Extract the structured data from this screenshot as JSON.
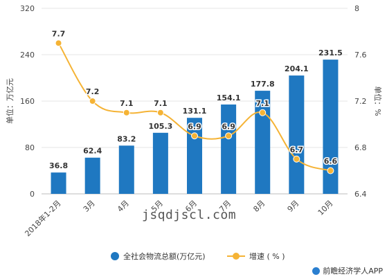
{
  "chart_data": {
    "type": "bar",
    "categories": [
      "2018年1-2月",
      "3月",
      "4月",
      "5月",
      "6月",
      "7月",
      "8月",
      "9月",
      "10月"
    ],
    "series": [
      {
        "name": "全社会物流总额(万亿元)",
        "type": "bar",
        "axis": "left",
        "values": [
          36.8,
          62.4,
          83.2,
          105.3,
          131.1,
          154.1,
          177.8,
          204.1,
          231.5
        ]
      },
      {
        "name": "增速 ( % )",
        "type": "line",
        "axis": "right",
        "values": [
          7.7,
          7.2,
          7.1,
          7.1,
          6.9,
          6.9,
          7.1,
          6.7,
          6.6
        ]
      }
    ],
    "ylabel": "单位：万亿元",
    "y2label": "单位：%",
    "ylim": [
      0,
      320
    ],
    "yticks": [
      0,
      80,
      160,
      240,
      320
    ],
    "y2lim": [
      6.4,
      8
    ],
    "y2ticks": [
      6.4,
      6.8,
      7.2,
      7.6,
      8
    ],
    "bar_color": "#1f78c1",
    "line_color": "#f5b335",
    "grid": true,
    "legend_position": "bottom"
  },
  "watermark_text": "jsqdjscl.com",
  "source": "前瞻经济学人APP"
}
